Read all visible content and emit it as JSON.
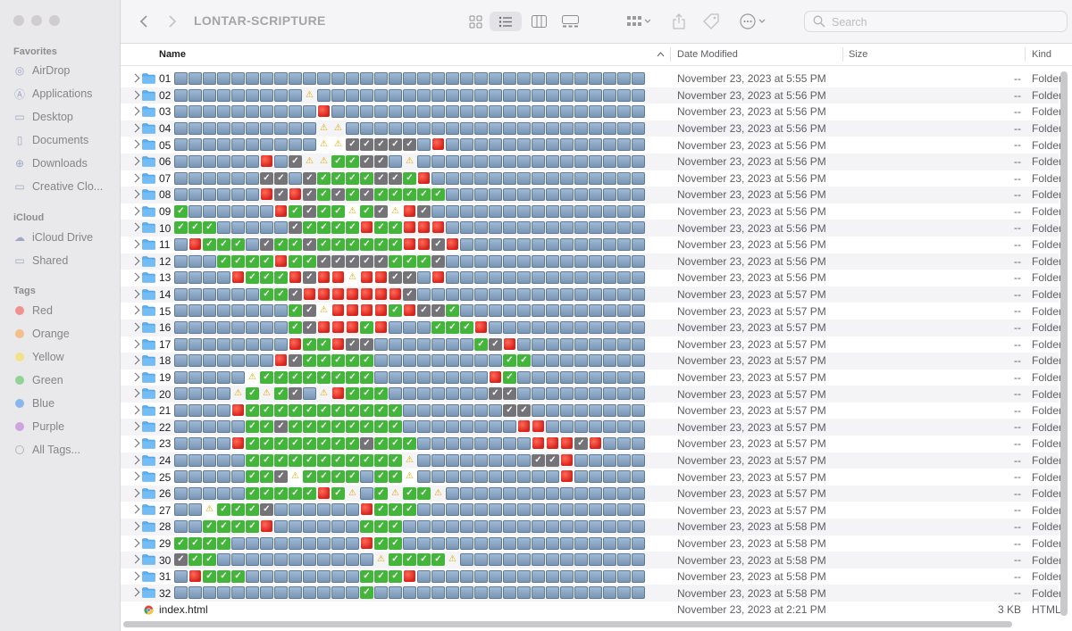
{
  "window": {
    "title": "LONTAR-SCRIPTURE"
  },
  "search": {
    "placeholder": "Search"
  },
  "sidebar": {
    "favorites_label": "Favorites",
    "favorites": [
      {
        "label": "AirDrop",
        "icon": "airdrop-icon"
      },
      {
        "label": "Applications",
        "icon": "applications-icon"
      },
      {
        "label": "Desktop",
        "icon": "desktop-icon"
      },
      {
        "label": "Documents",
        "icon": "documents-icon"
      },
      {
        "label": "Downloads",
        "icon": "downloads-icon"
      },
      {
        "label": "Creative Clo...",
        "icon": "folder-icon"
      }
    ],
    "icloud_label": "iCloud",
    "icloud": [
      {
        "label": "iCloud Drive",
        "icon": "cloud-icon"
      },
      {
        "label": "Shared",
        "icon": "shared-folder-icon"
      }
    ],
    "tags_label": "Tags",
    "tags": [
      {
        "label": "Red",
        "color": "#f0918d"
      },
      {
        "label": "Orange",
        "color": "#f4be8a"
      },
      {
        "label": "Yellow",
        "color": "#f3e08a"
      },
      {
        "label": "Green",
        "color": "#8fd494"
      },
      {
        "label": "Blue",
        "color": "#8ab6ee"
      },
      {
        "label": "Purple",
        "color": "#cfa2e0"
      },
      {
        "label": "All Tags...",
        "color": ""
      }
    ]
  },
  "columns": {
    "name": "Name",
    "date": "Date Modified",
    "size": "Size",
    "kind": "Kind"
  },
  "legend": {
    "f": "folder-emoji",
    "c": "green-check-emoji",
    "g": "gray-check-emoji",
    "r": "red-circle-emoji",
    "w": "warning-emoji"
  },
  "files": [
    {
      "name": "01",
      "emoji": "fffffffffffffffffffffffffffffffff",
      "date": "November 23, 2023 at 5:55 PM",
      "size": "--",
      "kind": "Folder"
    },
    {
      "name": "02",
      "emoji": "fffffffffwfffffffffffffffffffffff",
      "date": "November 23, 2023 at 5:56 PM",
      "size": "--",
      "kind": "Folder"
    },
    {
      "name": "03",
      "emoji": "ffffffffffrffffffffffffffffffffff",
      "date": "November 23, 2023 at 5:56 PM",
      "size": "--",
      "kind": "Folder"
    },
    {
      "name": "04",
      "emoji": "ffffffffffwwfffffffffffffffffffff",
      "date": "November 23, 2023 at 5:56 PM",
      "size": "--",
      "kind": "Folder"
    },
    {
      "name": "05",
      "emoji": "ffffffffffwwgggggfrffffffffffffff",
      "date": "November 23, 2023 at 5:56 PM",
      "size": "--",
      "kind": "Folder"
    },
    {
      "name": "06",
      "emoji": "ffffffrfgwwccggfwffffffffffffffff",
      "date": "November 23, 2023 at 5:56 PM",
      "size": "--",
      "kind": "Folder"
    },
    {
      "name": "07",
      "emoji": "ffffffggfgccccggcrfffffffffffffff",
      "date": "November 23, 2023 at 5:56 PM",
      "size": "--",
      "kind": "Folder"
    },
    {
      "name": "08",
      "emoji": "ffffffrgrgcgcgcccccffffffffffffff",
      "date": "November 23, 2023 at 5:56 PM",
      "size": "--",
      "kind": "Folder"
    },
    {
      "name": "09",
      "emoji": "cffffffrcgccwcgwrgfffffffffffffff",
      "date": "November 23, 2023 at 5:56 PM",
      "size": "--",
      "kind": "Folder"
    },
    {
      "name": "10",
      "emoji": "cccfffffgccccrccrrrffffffffffffff",
      "date": "November 23, 2023 at 5:56 PM",
      "size": "--",
      "kind": "Folder"
    },
    {
      "name": "11",
      "emoji": "frcccfgccgccccccrrgrfffffffffffff",
      "date": "November 23, 2023 at 5:56 PM",
      "size": "--",
      "kind": "Folder"
    },
    {
      "name": "12",
      "emoji": "fffccccrccgggggcccgffffffffffffff",
      "date": "November 23, 2023 at 5:56 PM",
      "size": "--",
      "kind": "Folder"
    },
    {
      "name": "13",
      "emoji": "ffffrcccrgrrwrrggfrffffffffffffff",
      "date": "November 23, 2023 at 5:56 PM",
      "size": "--",
      "kind": "Folder"
    },
    {
      "name": "14",
      "emoji": "ffffffccgrrrrrrrgffffffffffffffff",
      "date": "November 23, 2023 at 5:57 PM",
      "size": "--",
      "kind": "Folder"
    },
    {
      "name": "15",
      "emoji": "ffffffffcgwrrrrcrggcfffffffffffff",
      "date": "November 23, 2023 at 5:57 PM",
      "size": "--",
      "kind": "Folder"
    },
    {
      "name": "16",
      "emoji": "ffffffffcgrrrcrfffcccrfffffffffff",
      "date": "November 23, 2023 at 5:57 PM",
      "size": "--",
      "kind": "Folder"
    },
    {
      "name": "17",
      "emoji": "ffffffffrccrggfffffffcgrfffffffff",
      "date": "November 23, 2023 at 5:57 PM",
      "size": "--",
      "kind": "Folder"
    },
    {
      "name": "18",
      "emoji": "fffffffrgcccccfffffffffccffffffff",
      "date": "November 23, 2023 at 5:57 PM",
      "size": "--",
      "kind": "Folder"
    },
    {
      "name": "19",
      "emoji": "fffffwccccccccffffffffrcfffffffff",
      "date": "November 23, 2023 at 5:57 PM",
      "size": "--",
      "kind": "Folder"
    },
    {
      "name": "20",
      "emoji": "ffffwcwcgfwrcccfffffffggfffffffff",
      "date": "November 23, 2023 at 5:57 PM",
      "size": "--",
      "kind": "Folder"
    },
    {
      "name": "21",
      "emoji": "ffffrcccccccccccfffffffggffffffff",
      "date": "November 23, 2023 at 5:57 PM",
      "size": "--",
      "kind": "Folder"
    },
    {
      "name": "22",
      "emoji": "fffffccgccccccccffffffffrrfffffff",
      "date": "November 23, 2023 at 5:57 PM",
      "size": "--",
      "kind": "Folder"
    },
    {
      "name": "23",
      "emoji": "ffffrccccccccgcccffffffffrrrgrfff",
      "date": "November 23, 2023 at 5:57 PM",
      "size": "--",
      "kind": "Folder"
    },
    {
      "name": "24",
      "emoji": "fffffcccccccccccwffffffffggrfffff",
      "date": "November 23, 2023 at 5:57 PM",
      "size": "--",
      "kind": "Folder"
    },
    {
      "name": "25",
      "emoji": "fffffccgwccccfccwffffffffffrfffff",
      "date": "November 23, 2023 at 5:57 PM",
      "size": "--",
      "kind": "Folder"
    },
    {
      "name": "26",
      "emoji": "fffffcccccrcwfcwccwffffffffffffff",
      "date": "November 23, 2023 at 5:57 PM",
      "size": "--",
      "kind": "Folder"
    },
    {
      "name": "27",
      "emoji": "ffwcccgffffffrcccffffffffffffffff",
      "date": "November 23, 2023 at 5:57 PM",
      "size": "--",
      "kind": "Folder"
    },
    {
      "name": "28",
      "emoji": "ffccccrffffffcccfffffffffffffffff",
      "date": "November 23, 2023 at 5:58 PM",
      "size": "--",
      "kind": "Folder"
    },
    {
      "name": "29",
      "emoji": "ccccfffffffffrccfffffffffffffffff",
      "date": "November 23, 2023 at 5:58 PM",
      "size": "--",
      "kind": "Folder"
    },
    {
      "name": "30",
      "emoji": "gccfffffffffffwccccwfffffffffffff",
      "date": "November 23, 2023 at 5:58 PM",
      "size": "--",
      "kind": "Folder"
    },
    {
      "name": "31",
      "emoji": "frcccffffffffcccrffffffffffffffff",
      "date": "November 23, 2023 at 5:58 PM",
      "size": "--",
      "kind": "Folder"
    },
    {
      "name": "32",
      "emoji": "fffffffffffffcfffffffffffffffffff",
      "date": "November 23, 2023 at 5:58 PM",
      "size": "--",
      "kind": "Folder"
    }
  ],
  "html_file": {
    "name": "index.html",
    "date": "November 23, 2023 at 2:21 PM",
    "size": "3 KB",
    "kind": "HTML"
  }
}
